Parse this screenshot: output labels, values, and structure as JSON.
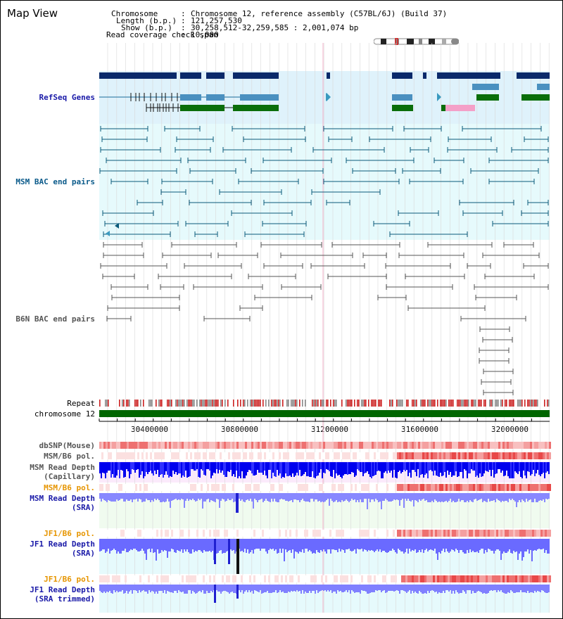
{
  "title": "Map View",
  "header": {
    "chromosome_label": "Chromosome",
    "chromosome_value": "Chromosome 12, reference assembly (C57BL/6J) (Build 37)",
    "length_label": "Length (b.p.)",
    "length_value": "121,257,530",
    "show_label": "Show (b.p.)",
    "show_value": "30,258,512-32,259,585 : 2,001,074 bp",
    "span_label": "Read coverage check span",
    "span_value": "10,000"
  },
  "tracks": {
    "refseq": "RefSeq Genes",
    "msm_bac": "MSM BAC end pairs",
    "b6n_bac": "B6N BAC end pairs",
    "repeat": "Repeat",
    "chromosome": "chromosome 12",
    "dbsnp": "dbSNP(Mouse)",
    "msm_b6_pol": "MSM/B6 pol.",
    "msm_depth_cap_1": "MSM Read Depth",
    "msm_depth_cap_2": "(Capillary)",
    "msm_b6_pol_sra": "MSM/B6 pol.",
    "msm_depth_sra_1": "MSM Read Depth",
    "msm_depth_sra_2": "(SRA)",
    "jf1_b6_pol": "JF1/B6 pol.",
    "jf1_depth_sra_1": "JF1 Read Depth",
    "jf1_depth_sra_2": "(SRA)",
    "jf1_b6_pol2": "JF1/B6 pol.",
    "jf1_depth_trim_1": "JF1 Read Depth",
    "jf1_depth_trim_2": "(SRA trimmed)"
  },
  "axis": {
    "ticks": [
      "30400000",
      "30800000",
      "31200000",
      "31600000",
      "32000000"
    ]
  },
  "colors": {
    "refseq_dark": "#0a2a6a",
    "refseq_mid": "#4a90c0",
    "refseq_green": "#0a6e0a",
    "pink": "#f4a0c8",
    "msm_bac": "#0a5a7a",
    "b6n_bac": "#555555",
    "depth_blue": "#0000ff",
    "depth_light": "#8080ff",
    "pol_red": "#e03030",
    "chrom_green": "#006600"
  }
}
